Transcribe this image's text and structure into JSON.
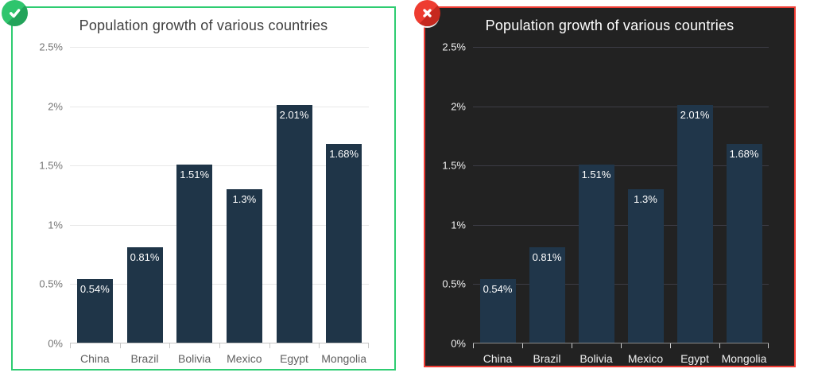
{
  "panels": [
    {
      "name": "correct-example",
      "verdict": "correct",
      "border_color": "#2ecc71",
      "badge": {
        "icon": "check-circle-icon",
        "color_main": "#2fc56d",
        "color_shade": "#23a35a",
        "glyph_color": "#ffffff"
      },
      "theme": {
        "background": "#ffffff",
        "title_color": "#3f3f3f",
        "axis_label_color": "#757575",
        "category_label_color": "#5f5f5f",
        "grid_color": "#e8e8e8",
        "axis_color": "#c6c6c6",
        "tick_color": "#c6c6c6",
        "bar_color": "#1f3548",
        "bar_label_color": "#ffffff"
      }
    },
    {
      "name": "incorrect-example",
      "verdict": "incorrect",
      "border_color": "#ee3b33",
      "badge": {
        "icon": "x-circle-icon",
        "color_main": "#ee3c30",
        "color_shade": "#c6281e",
        "glyph_color": "#ffffff"
      },
      "theme": {
        "background": "#222222",
        "title_color": "#ffffff",
        "axis_label_color": "#f0f0f0",
        "category_label_color": "#f0f0f0",
        "grid_color": "#3c3c45",
        "axis_color": "#8a8a8a",
        "tick_color": "#cfcfcf",
        "bar_color": "#20364a",
        "bar_label_color": "#ffffff"
      }
    }
  ],
  "chart_data": [
    {
      "type": "bar",
      "title": "Population growth of various countries",
      "categories": [
        "China",
        "Brazil",
        "Bolivia",
        "Mexico",
        "Egypt",
        "Mongolia"
      ],
      "values": [
        0.54,
        0.81,
        1.51,
        1.3,
        2.01,
        1.68
      ],
      "value_labels": [
        "0.54%",
        "0.81%",
        "1.51%",
        "1.3%",
        "2.01%",
        "1.68%"
      ],
      "xlabel": "",
      "ylabel": "",
      "ylim": [
        0,
        2.5
      ],
      "yticks": [
        0,
        0.5,
        1,
        1.5,
        2,
        2.5
      ],
      "ytick_labels": [
        "0%",
        "0.5%",
        "1%",
        "1.5%",
        "2%",
        "2.5%"
      ],
      "grid": true,
      "legend": "none",
      "theme": "light"
    },
    {
      "type": "bar",
      "title": "Population growth of various countries",
      "categories": [
        "China",
        "Brazil",
        "Bolivia",
        "Mexico",
        "Egypt",
        "Mongolia"
      ],
      "values": [
        0.54,
        0.81,
        1.51,
        1.3,
        2.01,
        1.68
      ],
      "value_labels": [
        "0.54%",
        "0.81%",
        "1.51%",
        "1.3%",
        "2.01%",
        "1.68%"
      ],
      "xlabel": "",
      "ylabel": "",
      "ylim": [
        0,
        2.5
      ],
      "yticks": [
        0,
        0.5,
        1,
        1.5,
        2,
        2.5
      ],
      "ytick_labels": [
        "0%",
        "0.5%",
        "1%",
        "1.5%",
        "2%",
        "2.5%"
      ],
      "grid": true,
      "legend": "none",
      "theme": "dark"
    }
  ]
}
